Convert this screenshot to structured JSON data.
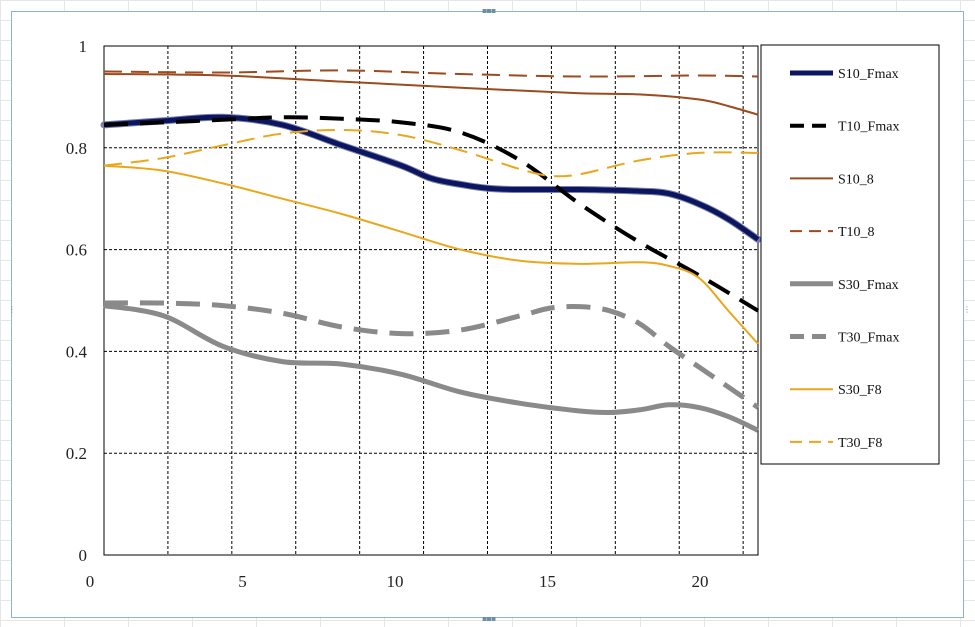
{
  "chart_data": {
    "type": "line",
    "title": "",
    "xlabel": "",
    "ylabel": "",
    "xlim": [
      0,
      22
    ],
    "ylim": [
      0,
      1
    ],
    "xticks": [
      0,
      5,
      10,
      15,
      20
    ],
    "yticks": [
      0,
      0.2,
      0.4,
      0.6,
      0.8,
      1
    ],
    "xgrid_step": 2.15,
    "grid": true,
    "legend_position": "right",
    "series": [
      {
        "name": "S10_Fmax",
        "color": "#0c1660",
        "dash": "solid",
        "width": 5,
        "x": [
          0,
          2,
          4,
          6,
          8,
          10,
          11,
          12,
          13,
          14,
          16,
          18,
          19,
          20,
          21,
          22
        ],
        "y": [
          0.845,
          0.853,
          0.86,
          0.845,
          0.805,
          0.765,
          0.74,
          0.728,
          0.72,
          0.718,
          0.718,
          0.715,
          0.71,
          0.69,
          0.66,
          0.62
        ]
      },
      {
        "name": "T10_Fmax",
        "color": "#000000",
        "dash": "dashed",
        "width": 4,
        "x": [
          0,
          2,
          4,
          6,
          8,
          10,
          12,
          14,
          16,
          18,
          20,
          22
        ],
        "y": [
          0.845,
          0.85,
          0.855,
          0.86,
          0.857,
          0.85,
          0.83,
          0.775,
          0.69,
          0.615,
          0.55,
          0.48
        ]
      },
      {
        "name": "S10_8",
        "color": "#9c4a1e",
        "dash": "solid",
        "width": 2,
        "x": [
          0,
          4,
          8,
          12,
          16,
          18,
          20,
          21,
          22
        ],
        "y": [
          0.945,
          0.942,
          0.93,
          0.918,
          0.907,
          0.905,
          0.895,
          0.882,
          0.865
        ]
      },
      {
        "name": "T10_8",
        "color": "#9c4a1e",
        "dash": "dashed",
        "width": 2,
        "x": [
          0,
          4,
          8,
          12,
          16,
          20,
          22
        ],
        "y": [
          0.95,
          0.948,
          0.952,
          0.945,
          0.94,
          0.942,
          0.94
        ]
      },
      {
        "name": "S30_Fmax",
        "color": "#8a8a8a",
        "dash": "solid",
        "width": 5,
        "x": [
          0,
          2,
          4,
          6,
          8,
          10,
          12,
          14,
          16,
          17,
          18,
          19,
          20,
          21,
          22
        ],
        "y": [
          0.49,
          0.47,
          0.41,
          0.38,
          0.375,
          0.355,
          0.32,
          0.298,
          0.283,
          0.28,
          0.285,
          0.295,
          0.29,
          0.272,
          0.245
        ]
      },
      {
        "name": "T30_Fmax",
        "color": "#8a8a8a",
        "dash": "dashed",
        "width": 5,
        "x": [
          0,
          2,
          4,
          6,
          8,
          10,
          12,
          14,
          15,
          16,
          17,
          18,
          19,
          20,
          21,
          22
        ],
        "y": [
          0.495,
          0.495,
          0.49,
          0.475,
          0.448,
          0.435,
          0.442,
          0.47,
          0.485,
          0.488,
          0.48,
          0.455,
          0.41,
          0.37,
          0.33,
          0.29
        ]
      },
      {
        "name": "S30_F8",
        "color": "#eaa71b",
        "dash": "solid",
        "width": 2,
        "x": [
          0,
          2,
          4,
          6,
          8,
          10,
          12,
          14,
          16,
          18,
          19,
          20,
          21,
          22
        ],
        "y": [
          0.765,
          0.755,
          0.73,
          0.7,
          0.67,
          0.635,
          0.6,
          0.578,
          0.572,
          0.575,
          0.568,
          0.545,
          0.48,
          0.415
        ]
      },
      {
        "name": "T30_F8",
        "color": "#eaa71b",
        "dash": "dashed",
        "width": 2,
        "x": [
          0,
          2,
          4,
          6,
          8,
          10,
          12,
          14,
          15,
          16,
          18,
          20,
          22
        ],
        "y": [
          0.765,
          0.78,
          0.805,
          0.828,
          0.835,
          0.825,
          0.795,
          0.758,
          0.745,
          0.748,
          0.775,
          0.79,
          0.79
        ]
      }
    ]
  }
}
